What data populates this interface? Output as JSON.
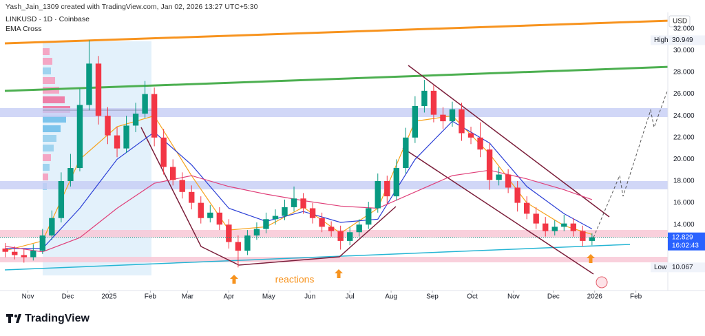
{
  "header": {
    "author_line": "Yash_Jain_1309 created with TradingView.com, Jan 02, 2026 13:27 UTC+5:30"
  },
  "chart_data": {
    "type": "candlestick",
    "title": "LINKUSD · 1D · Coinbase",
    "subtitle": "EMA Cross",
    "currency": "USD",
    "up_color": "#089981",
    "down_color": "#f23645",
    "x": [
      -17,
      -10,
      -3,
      4,
      11,
      18,
      25,
      32,
      39,
      46,
      53,
      60,
      67,
      74,
      81,
      88,
      95,
      102,
      109,
      116,
      123,
      130,
      137,
      144,
      151,
      158,
      165,
      172,
      179,
      186,
      193,
      200,
      207,
      214,
      221,
      228,
      235,
      242,
      249,
      256,
      263,
      270,
      277,
      284,
      291,
      298,
      305,
      312,
      319,
      326,
      333,
      340,
      347,
      354,
      361,
      368,
      375,
      382,
      389,
      396,
      403,
      410,
      417,
      424
    ],
    "open": [
      11.8,
      11.5,
      11.2,
      11.0,
      11.6,
      13.0,
      14.6,
      18.0,
      19.2,
      25.0,
      28.8,
      24.0,
      22.2,
      21.0,
      23.1,
      24.2,
      26.0,
      22.0,
      19.3,
      18.1,
      17.0,
      16.0,
      14.6,
      15.1,
      14.0,
      12.4,
      11.6,
      13.0,
      13.6,
      14.5,
      14.8,
      15.6,
      16.4,
      15.5,
      14.6,
      13.8,
      13.4,
      12.5,
      13.3,
      14.0,
      15.5,
      18.0,
      16.6,
      19.2,
      22.0,
      24.9,
      26.3,
      24.1,
      23.5,
      24.6,
      22.4,
      22.0,
      20.9,
      18.1,
      18.6,
      17.4,
      16.0,
      15.0,
      14.1,
      13.4,
      13.8,
      14.1,
      13.4,
      12.5
    ],
    "high": [
      12.3,
      12.0,
      11.8,
      12.2,
      13.6,
      15.3,
      18.8,
      20.5,
      26.5,
      30.949,
      29.5,
      24.8,
      23.0,
      24.0,
      25.2,
      27.2,
      26.6,
      22.8,
      20.0,
      18.8,
      17.6,
      16.6,
      15.8,
      15.6,
      14.5,
      13.0,
      13.5,
      14.2,
      15.1,
      15.4,
      16.3,
      17.5,
      16.9,
      16.0,
      15.1,
      14.3,
      13.9,
      13.8,
      14.5,
      16.1,
      18.7,
      18.5,
      20.0,
      22.9,
      25.8,
      27.3,
      26.8,
      24.8,
      25.3,
      25.2,
      23.0,
      23.4,
      21.5,
      19.3,
      19.1,
      18.0,
      16.6,
      15.6,
      14.7,
      14.4,
      14.9,
      14.6,
      13.9,
      13.2
    ],
    "low": [
      11.0,
      10.8,
      10.5,
      10.7,
      11.3,
      12.6,
      14.2,
      17.5,
      18.9,
      24.5,
      23.2,
      21.4,
      20.2,
      20.6,
      22.5,
      23.8,
      21.2,
      18.6,
      17.6,
      16.4,
      15.4,
      14.1,
      14.2,
      13.5,
      11.8,
      10.067,
      11.2,
      12.6,
      13.2,
      14.0,
      14.4,
      15.2,
      15.0,
      14.1,
      13.3,
      12.9,
      11.7,
      12.1,
      12.9,
      13.6,
      15.1,
      15.9,
      16.2,
      18.7,
      21.5,
      24.3,
      23.4,
      22.8,
      23.0,
      21.7,
      21.4,
      20.2,
      17.2,
      17.6,
      16.9,
      15.2,
      14.5,
      13.6,
      12.9,
      13.0,
      13.4,
      12.9,
      12.0,
      12.1
    ],
    "close": [
      11.5,
      11.2,
      11.0,
      11.6,
      13.0,
      14.6,
      18.0,
      19.2,
      25.0,
      28.8,
      24.0,
      22.2,
      21.0,
      23.1,
      24.2,
      26.0,
      22.0,
      19.3,
      18.1,
      17.0,
      16.0,
      14.6,
      15.1,
      14.0,
      12.4,
      11.6,
      13.0,
      13.6,
      14.5,
      14.8,
      15.6,
      16.4,
      15.5,
      14.6,
      13.8,
      13.4,
      12.5,
      13.3,
      14.0,
      15.5,
      18.0,
      16.6,
      19.2,
      22.0,
      24.9,
      26.3,
      24.1,
      23.5,
      24.6,
      22.4,
      22.0,
      20.9,
      18.1,
      18.6,
      17.4,
      16.0,
      15.0,
      14.1,
      13.4,
      13.8,
      14.1,
      13.4,
      12.5,
      12.83
    ],
    "overlays": [
      {
        "color": "#f7a21b",
        "x": [
          -17,
          11,
          39,
          67,
          95,
          123,
          151,
          179,
          207,
          235,
          263,
          291,
          319,
          347,
          375,
          403,
          424
        ],
        "values": [
          11.6,
          12.5,
          20,
          23,
          24,
          18.5,
          13.5,
          13.8,
          15.6,
          13.2,
          15.5,
          23.5,
          24,
          20.5,
          16,
          13.9,
          13.1
        ]
      },
      {
        "color": "#2b3fd6",
        "x": [
          -17,
          11,
          39,
          67,
          95,
          123,
          151,
          179,
          207,
          235,
          263,
          291,
          319,
          347,
          375,
          403,
          424
        ],
        "values": [
          11.8,
          11.8,
          15.5,
          20,
          22.5,
          19.5,
          15.5,
          14.3,
          15.2,
          14.2,
          14.5,
          20,
          23.5,
          21.5,
          17.5,
          15,
          13.6
        ]
      },
      {
        "color": "#e0417a",
        "x": [
          -17,
          11,
          39,
          67,
          95,
          123,
          151,
          179,
          207,
          235,
          263,
          291,
          319,
          347,
          375,
          403,
          424
        ],
        "values": [
          12,
          11.5,
          12.8,
          15.5,
          17.8,
          18.5,
          17.5,
          16.8,
          16.2,
          15.7,
          15.5,
          17,
          18.5,
          19,
          18.2,
          17.2,
          16.3
        ]
      }
    ],
    "xlim": [
      -21,
      481
    ],
    "xticks": [
      {
        "value": 0,
        "label": "Nov"
      },
      {
        "value": 30,
        "label": "Dec"
      },
      {
        "value": 61,
        "label": "2025"
      },
      {
        "value": 92,
        "label": "Feb"
      },
      {
        "value": 120,
        "label": "Mar"
      },
      {
        "value": 151,
        "label": "Apr"
      },
      {
        "value": 181,
        "label": "May"
      },
      {
        "value": 212,
        "label": "Jun"
      },
      {
        "value": 242,
        "label": "Jul"
      },
      {
        "value": 273,
        "label": "Aug"
      },
      {
        "value": 304,
        "label": "Sep"
      },
      {
        "value": 334,
        "label": "Oct"
      },
      {
        "value": 365,
        "label": "Nov"
      },
      {
        "value": 395,
        "label": "Dec"
      },
      {
        "value": 426,
        "label": "2026"
      },
      {
        "value": 457,
        "label": "Feb"
      }
    ],
    "ylim": [
      8,
      33
    ],
    "yticks": [
      {
        "value": 14,
        "label": "14.000"
      },
      {
        "value": 16,
        "label": "16.000"
      },
      {
        "value": 18,
        "label": "18.000"
      },
      {
        "value": 20,
        "label": "20.000"
      },
      {
        "value": 22,
        "label": "22.000"
      },
      {
        "value": 24,
        "label": "24.000"
      },
      {
        "value": 26,
        "label": "26.000"
      },
      {
        "value": 28,
        "label": "28.000"
      },
      {
        "value": 30,
        "label": "30.000"
      },
      {
        "value": 32,
        "label": "32.000"
      }
    ],
    "grid": false,
    "high_marker": {
      "label": "High",
      "value": 30.949
    },
    "low_marker": {
      "label": "Low",
      "value": 10.067
    },
    "last_price": 12.829,
    "countdown": "16:02:43",
    "annotation": "reactions"
  },
  "footer": {
    "brand": "TradingView"
  }
}
